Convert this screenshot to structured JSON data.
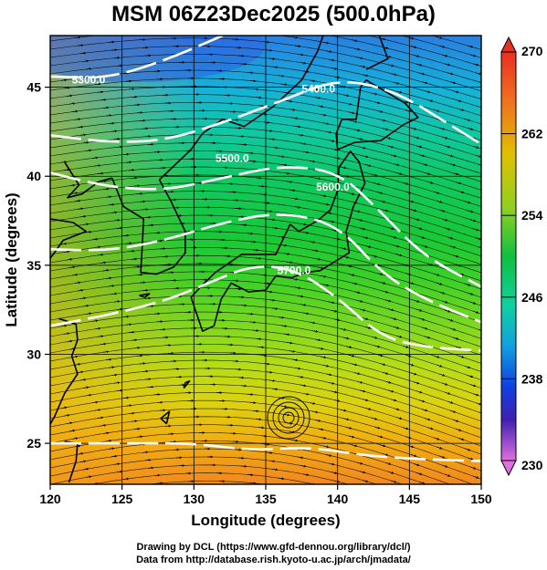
{
  "title": "MSM 06Z23Dec2025 (500.0hPa)",
  "map": {
    "xlabel": "Longitude (degrees)",
    "ylabel": "Latitude  (degrees)",
    "lon_range": [
      120,
      150
    ],
    "lat_range": [
      22.7,
      47.9
    ],
    "lon_ticks": [
      "120",
      "125",
      "130",
      "135",
      "140",
      "145",
      "150"
    ],
    "lat_ticks": [
      "25",
      "30",
      "35",
      "40",
      "45"
    ],
    "field": "temperature (colour shaded), geopotential height (white contours), wind (streamlines)",
    "contour_labels": [
      {
        "text": "5300.0",
        "lon": 121.5,
        "lat": 45.2
      },
      {
        "text": "5400.0",
        "lon": 137.5,
        "lat": 44.7
      },
      {
        "text": "5500.0",
        "lon": 131.5,
        "lat": 40.8
      },
      {
        "text": "5600.0",
        "lon": 138.5,
        "lat": 39.2
      },
      {
        "text": "5700.0",
        "lon": 135.8,
        "lat": 34.5
      }
    ]
  },
  "colorbar": {
    "min": 230,
    "max": 270,
    "ticks": [
      "270",
      "262",
      "254",
      "246",
      "238",
      "230"
    ],
    "colors": [
      "#e070e0",
      "#4020b0",
      "#1040e0",
      "#00b0e0",
      "#10d090",
      "#10c040",
      "#70d020",
      "#e0d000",
      "#f0a000",
      "#f06020"
    ]
  },
  "credits": {
    "line1": "Drawing by DCL (https://www.gfd-dennou.org/library/dcl/)",
    "line2": "Data from http://database.rish.kyoto-u.ac.jp/arch/jmadata/"
  }
}
